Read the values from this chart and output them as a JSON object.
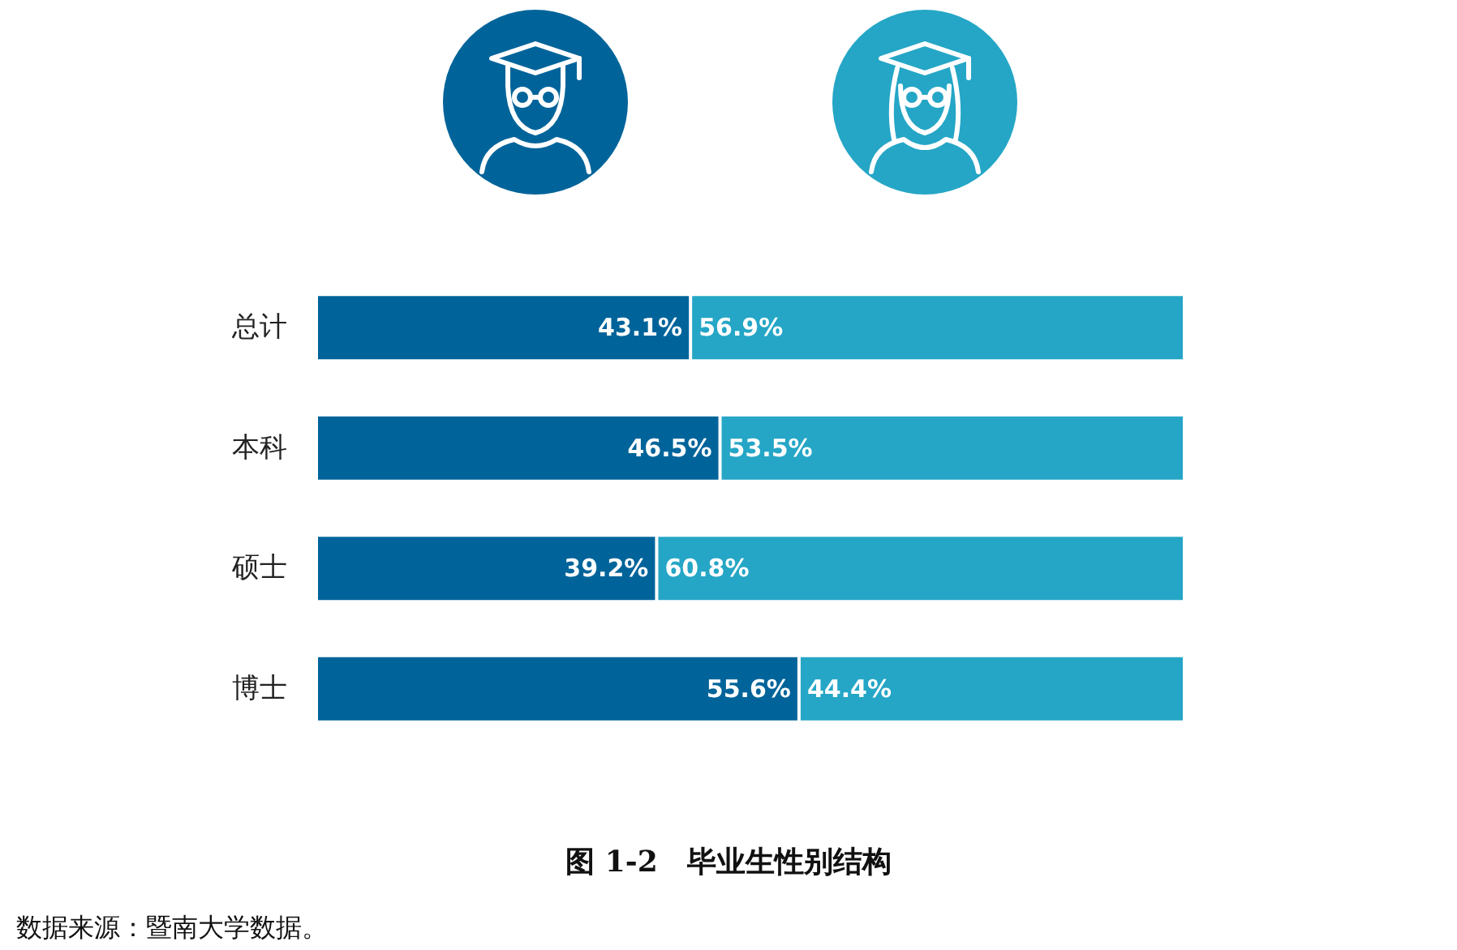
{
  "chart_data": {
    "type": "bar",
    "orientation": "horizontal",
    "stacked": true,
    "title": "图 1-2　毕业生性别结构",
    "categories": [
      "总计",
      "本科",
      "硕士",
      "博士"
    ],
    "xlim": [
      0,
      100
    ],
    "series": [
      {
        "color": "#00649a",
        "values": [
          43.1,
          46.5,
          39.2,
          55.6
        ],
        "value_labels": [
          "43.1%",
          "46.5%",
          "39.2%",
          "55.6%"
        ]
      },
      {
        "color": "#25a6c6",
        "values": [
          56.9,
          53.5,
          60.8,
          44.4
        ],
        "value_labels": [
          "56.9%",
          "53.5%",
          "60.8%",
          "44.4%"
        ]
      }
    ],
    "annotations": [
      "数据来源：暨南大学数据。"
    ]
  }
}
